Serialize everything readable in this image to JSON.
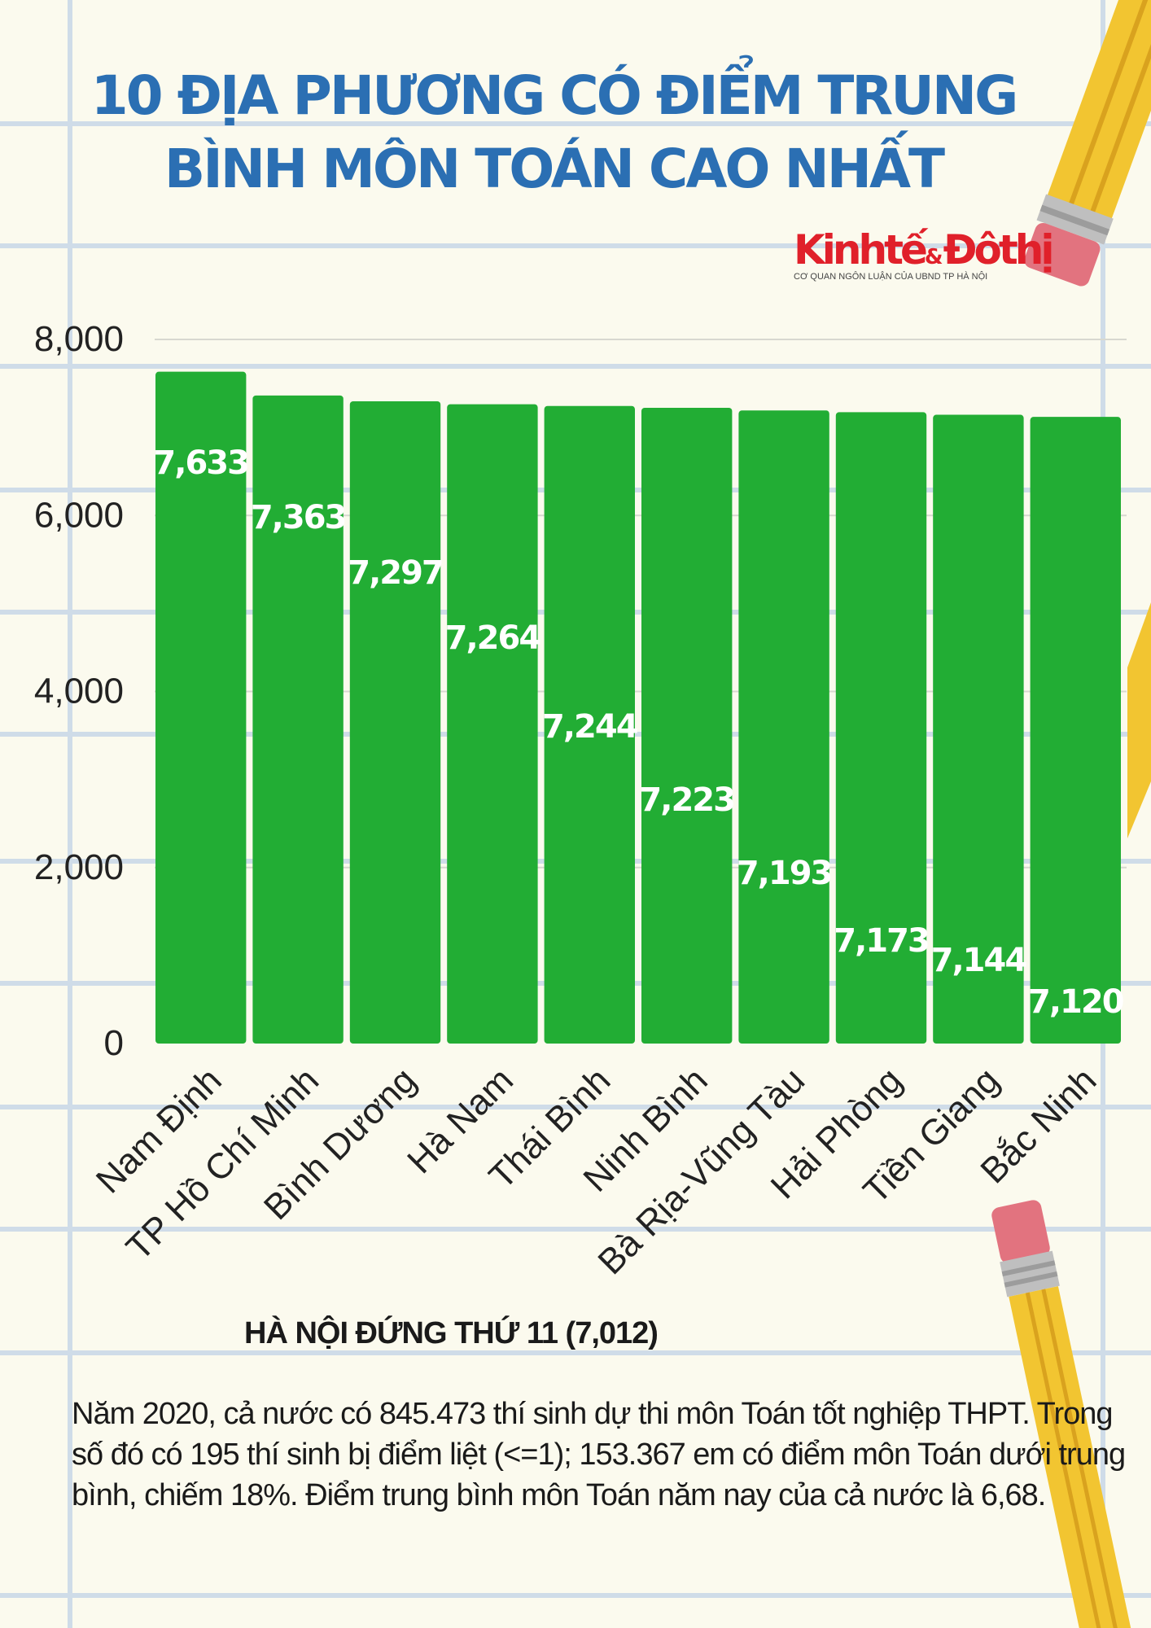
{
  "header": {
    "title_line1": "10 ĐỊA PHƯƠNG CÓ ĐIỂM TRUNG",
    "title_line2": "BÌNH MÔN  TOÁN CAO NHẤT"
  },
  "logo": {
    "name": "KinhtếĐôthị",
    "name_part1": "Kinhtế",
    "amp": "&",
    "name_part2": "Đôthị",
    "tagline": "CƠ QUAN NGÔN LUẬN CỦA UBND TP HÀ NỘI"
  },
  "chart_data": {
    "type": "bar",
    "title": "10 ĐỊA PHƯƠNG CÓ ĐIỂM TRUNG BÌNH MÔN  TOÁN CAO NHẤT",
    "categories": [
      "Nam Định",
      "TP Hồ Chí Minh",
      "Bình Dương",
      "Hà Nam",
      "Thái Bình",
      "Ninh Bình",
      "Bà Rịa-Vũng Tàu",
      "Hải Phòng",
      "Tiền Giang",
      "Bắc Ninh"
    ],
    "values": [
      7633,
      7363,
      7297,
      7264,
      7244,
      7223,
      7193,
      7173,
      7144,
      7120
    ],
    "value_labels": [
      "7,633",
      "7,363",
      "7,297",
      "7,264",
      "7,244",
      "7,223",
      "7,193",
      "7,173",
      "7,144",
      "7,120"
    ],
    "yticks": [
      "0",
      "2,000",
      "4,000",
      "6,000",
      "8,000"
    ],
    "ylim": [
      0,
      8000
    ],
    "xlabel": "",
    "ylabel": "",
    "grid": true,
    "legend": "none",
    "bar_color": "#22ad34"
  },
  "footer": {
    "note": "HÀ NỘI ĐỨNG THỨ 11 (7,012)",
    "paragraph": "Năm 2020, cả nước có 845.473 thí sinh dự thi môn Toán tốt nghiệp THPT. Trong số đó có 195 thí sinh bị điểm liệt (<=1); 153.367 em có điểm môn Toán dưới trung bình, chiếm 18%. Điểm trung bình môn Toán năm nay của cả nước là 6,68."
  },
  "colors": {
    "background": "#fbfaee",
    "notebook_lines": "#cfdce8",
    "title": "#2b6fb3",
    "bar": "#22ad34",
    "pencil_body": "#f2c531",
    "eraser": "#e2737f"
  },
  "decorations": [
    "pencil-icon-top-right",
    "pencil-icon-bottom-right"
  ]
}
